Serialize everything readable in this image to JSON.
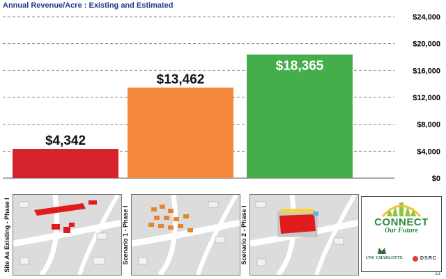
{
  "slide": {
    "title": "Annual Revenue/Acre : Existing and Estimated",
    "page_number": "13"
  },
  "chart_data": {
    "type": "bar",
    "title": "Annual Revenue/Acre : Existing and Estimated",
    "categories": [
      "Site As Existing - Phase I",
      "Scenario 1 - Phase I",
      "Scenario 2 - Phase I"
    ],
    "values": [
      4342,
      13462,
      18365
    ],
    "data_labels": [
      "$4,342",
      "$13,462",
      "$18,365"
    ],
    "colors": [
      "#d4232d",
      "#f3873b",
      "#45ad4a"
    ],
    "y_ticks": [
      0,
      4000,
      8000,
      12000,
      16000,
      20000,
      24000
    ],
    "y_tick_labels": [
      "$0",
      "$4,000",
      "$8,000",
      "$12,000",
      "$16,000",
      "$20,000",
      "$24,000"
    ],
    "ylim": [
      0,
      24000
    ],
    "grid": true,
    "grid_style": "dashed",
    "y_axis_position": "right"
  },
  "panels": [
    {
      "label": "Site As Existing - Phase I",
      "building_color": "#e01b1b"
    },
    {
      "label": "Scenario 1 - Phase I",
      "building_color": "#e3862e"
    },
    {
      "label": "Scenario 2 - Phase I",
      "building_color": "#e01b1b"
    }
  ],
  "logo": {
    "connect": "CONNECT",
    "tagline": "Our Future",
    "unc": "UNC CHARLOTTE",
    "dsrc": "DSRC"
  }
}
